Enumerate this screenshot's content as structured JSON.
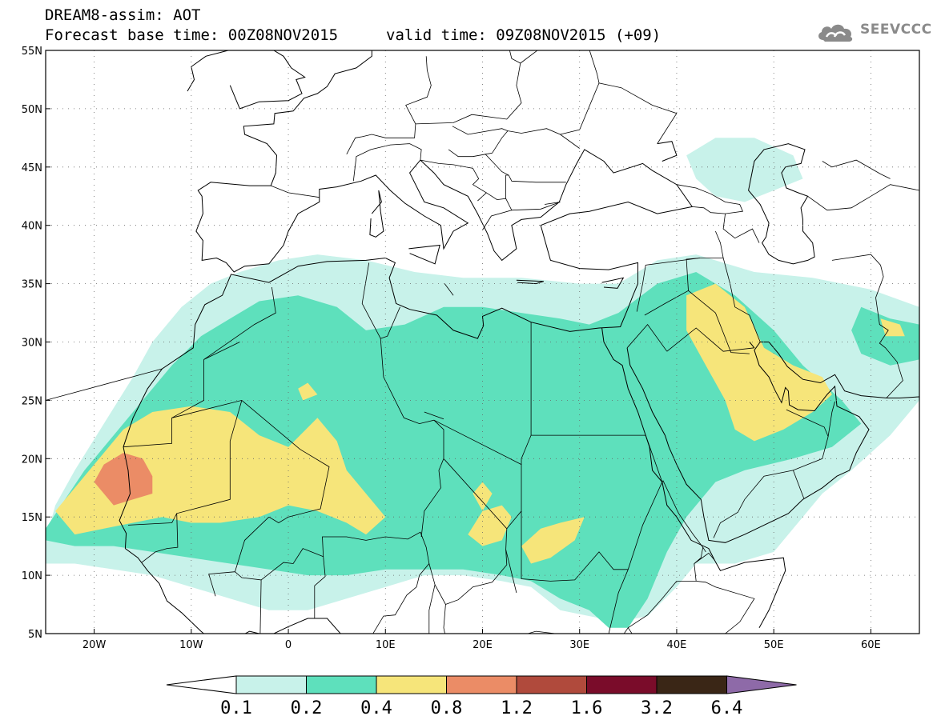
{
  "title": {
    "line1": "DREAM8-assim: AOT",
    "line2": "Forecast base time: 00Z08NOV2015",
    "valid": "valid time: 09Z08NOV2015 (+09)"
  },
  "logo": {
    "text": "SEEVCCC",
    "icon": "cloud-icon",
    "color": "#8a8a8a"
  },
  "axes": {
    "lon_range": [
      -25,
      65
    ],
    "lat_range": [
      5,
      55
    ],
    "lat_ticks": [
      {
        "value": 55,
        "label": "55N"
      },
      {
        "value": 50,
        "label": "50N"
      },
      {
        "value": 45,
        "label": "45N"
      },
      {
        "value": 40,
        "label": "40N"
      },
      {
        "value": 35,
        "label": "35N"
      },
      {
        "value": 30,
        "label": "30N"
      },
      {
        "value": 25,
        "label": "25N"
      },
      {
        "value": 20,
        "label": "20N"
      },
      {
        "value": 15,
        "label": "15N"
      },
      {
        "value": 10,
        "label": "10N"
      },
      {
        "value": 5,
        "label": "5N"
      }
    ],
    "lon_ticks": [
      {
        "value": -20,
        "label": "20W"
      },
      {
        "value": -10,
        "label": "10W"
      },
      {
        "value": 0,
        "label": "0"
      },
      {
        "value": 10,
        "label": "10E"
      },
      {
        "value": 20,
        "label": "20E"
      },
      {
        "value": 30,
        "label": "30E"
      },
      {
        "value": 40,
        "label": "40E"
      },
      {
        "value": 50,
        "label": "50E"
      },
      {
        "value": 60,
        "label": "60E"
      }
    ]
  },
  "colorbar": {
    "labels": [
      "0.1",
      "0.2",
      "0.4",
      "0.8",
      "1.2",
      "1.6",
      "3.2",
      "6.4"
    ],
    "colors": [
      "#ffffff",
      "#c8f2ea",
      "#5ee0bc",
      "#f6e57a",
      "#eb8c66",
      "#b04a3c",
      "#7a0c2a",
      "#3a2616",
      "#8e6aa8"
    ]
  },
  "fields": [
    {
      "level": 1,
      "color": "#c8f2ea",
      "polygons": [
        [
          [
            -25,
            13
          ],
          [
            -24,
            16
          ],
          [
            -22,
            19
          ],
          [
            -19,
            23
          ],
          [
            -16,
            27
          ],
          [
            -14,
            30
          ],
          [
            -11,
            33
          ],
          [
            -8,
            35
          ],
          [
            -5,
            36
          ],
          [
            -1,
            37
          ],
          [
            3,
            37.5
          ],
          [
            8,
            37
          ],
          [
            13,
            36
          ],
          [
            18,
            35.5
          ],
          [
            24,
            35.5
          ],
          [
            30,
            35
          ],
          [
            34,
            35
          ],
          [
            38,
            37
          ],
          [
            42,
            37.5
          ],
          [
            48,
            36
          ],
          [
            54,
            35.5
          ],
          [
            60,
            34.5
          ],
          [
            65,
            33
          ],
          [
            65,
            25
          ],
          [
            62,
            22
          ],
          [
            58,
            19
          ],
          [
            55,
            17
          ],
          [
            52,
            14
          ],
          [
            50,
            12
          ],
          [
            46,
            11
          ],
          [
            42,
            11
          ],
          [
            40,
            9
          ],
          [
            37,
            6.5
          ],
          [
            34,
            6
          ],
          [
            31,
            6.5
          ],
          [
            28,
            7
          ],
          [
            25,
            9
          ],
          [
            22,
            9.5
          ],
          [
            18,
            10
          ],
          [
            14,
            10
          ],
          [
            10,
            9
          ],
          [
            6,
            8
          ],
          [
            2,
            7
          ],
          [
            -2,
            7
          ],
          [
            -6,
            8
          ],
          [
            -10,
            9
          ],
          [
            -14,
            10
          ],
          [
            -18,
            10.5
          ],
          [
            -22,
            11
          ],
          [
            -25,
            11
          ]
        ],
        [
          [
            41,
            46
          ],
          [
            44,
            47.5
          ],
          [
            48,
            47.5
          ],
          [
            52,
            46
          ],
          [
            53,
            44
          ],
          [
            50,
            43
          ],
          [
            47,
            42
          ],
          [
            44,
            42.5
          ],
          [
            42,
            44
          ]
        ]
      ]
    },
    {
      "level": 2,
      "color": "#5ee0bc",
      "polygons": [
        [
          [
            -25,
            14
          ],
          [
            -23,
            16.5
          ],
          [
            -21,
            19
          ],
          [
            -18,
            22
          ],
          [
            -15,
            25
          ],
          [
            -12,
            28
          ],
          [
            -9,
            30.5
          ],
          [
            -6,
            32
          ],
          [
            -3,
            33.5
          ],
          [
            1,
            34
          ],
          [
            5,
            33
          ],
          [
            8,
            31
          ],
          [
            12,
            31.5
          ],
          [
            16,
            33
          ],
          [
            20,
            33
          ],
          [
            24,
            32.5
          ],
          [
            28,
            32
          ],
          [
            31,
            31.5
          ],
          [
            34,
            32.5
          ],
          [
            38,
            35
          ],
          [
            42,
            36
          ],
          [
            46,
            34
          ],
          [
            50,
            31
          ],
          [
            53,
            28
          ],
          [
            57,
            25
          ],
          [
            59,
            23
          ],
          [
            56,
            21
          ],
          [
            52,
            20
          ],
          [
            47,
            19
          ],
          [
            44,
            18
          ],
          [
            41,
            15
          ],
          [
            39,
            12
          ],
          [
            37,
            8
          ],
          [
            35,
            5.5
          ],
          [
            33,
            5.5
          ],
          [
            31,
            7
          ],
          [
            28,
            8
          ],
          [
            25,
            9.5
          ],
          [
            22,
            10
          ],
          [
            18,
            10.5
          ],
          [
            14,
            10.5
          ],
          [
            10,
            10.5
          ],
          [
            6,
            10
          ],
          [
            2,
            10
          ],
          [
            -2,
            10.5
          ],
          [
            -6,
            11
          ],
          [
            -10,
            11.5
          ],
          [
            -14,
            12
          ],
          [
            -18,
            12.5
          ],
          [
            -22,
            12.5
          ],
          [
            -25,
            13
          ]
        ],
        [
          [
            59,
            33
          ],
          [
            62,
            32
          ],
          [
            65,
            31.5
          ],
          [
            65,
            28.5
          ],
          [
            62,
            28
          ],
          [
            59,
            29
          ],
          [
            58,
            31
          ]
        ]
      ]
    },
    {
      "level": 3,
      "color": "#f6e57a",
      "polygons": [
        [
          [
            -24,
            15.5
          ],
          [
            -22,
            17.5
          ],
          [
            -20,
            19.5
          ],
          [
            -17,
            22.5
          ],
          [
            -14,
            24
          ],
          [
            -10,
            24.5
          ],
          [
            -6,
            24
          ],
          [
            -3,
            22
          ],
          [
            0,
            21
          ],
          [
            3,
            23.5
          ],
          [
            5,
            21.5
          ],
          [
            6,
            19
          ],
          [
            8,
            17
          ],
          [
            10,
            15
          ],
          [
            8,
            13.5
          ],
          [
            6,
            14.5
          ],
          [
            3,
            15.5
          ],
          [
            0,
            16
          ],
          [
            -3,
            15
          ],
          [
            -7,
            14.5
          ],
          [
            -10,
            14.5
          ],
          [
            -13,
            15
          ],
          [
            -16,
            14.5
          ],
          [
            -19,
            14
          ],
          [
            -22,
            13.5
          ]
        ],
        [
          [
            41,
            34
          ],
          [
            44,
            35
          ],
          [
            47,
            33
          ],
          [
            49,
            29.5
          ],
          [
            52,
            28
          ],
          [
            55,
            27
          ],
          [
            56,
            25.5
          ],
          [
            54,
            24
          ],
          [
            51,
            22.5
          ],
          [
            48,
            21.5
          ],
          [
            46,
            22.5
          ],
          [
            45,
            25
          ],
          [
            43,
            28
          ],
          [
            41,
            31
          ]
        ],
        [
          [
            19,
            17
          ],
          [
            20,
            18
          ],
          [
            21,
            17
          ],
          [
            20,
            15.5
          ]
        ],
        [
          [
            18.5,
            13.5
          ],
          [
            20,
            15.5
          ],
          [
            22,
            16
          ],
          [
            23,
            15
          ],
          [
            22,
            13
          ],
          [
            20,
            12.5
          ]
        ],
        [
          [
            24,
            12.5
          ],
          [
            26,
            14
          ],
          [
            28,
            14.5
          ],
          [
            30.5,
            15
          ],
          [
            29.5,
            13
          ],
          [
            27,
            11.5
          ],
          [
            25,
            11
          ]
        ],
        [
          [
            1,
            26
          ],
          [
            2,
            26.5
          ],
          [
            3,
            25.5
          ],
          [
            1.5,
            25
          ]
        ],
        [
          [
            61,
            32
          ],
          [
            63,
            31.5
          ],
          [
            63.5,
            30.5
          ],
          [
            61.5,
            30.5
          ]
        ]
      ]
    },
    {
      "level": 4,
      "color": "#eb8c66",
      "polygons": [
        [
          [
            -20,
            18
          ],
          [
            -19,
            19.5
          ],
          [
            -17,
            20.5
          ],
          [
            -15,
            20
          ],
          [
            -14,
            18.5
          ],
          [
            -14,
            17
          ],
          [
            -16,
            16.5
          ],
          [
            -18,
            16
          ]
        ]
      ]
    }
  ]
}
